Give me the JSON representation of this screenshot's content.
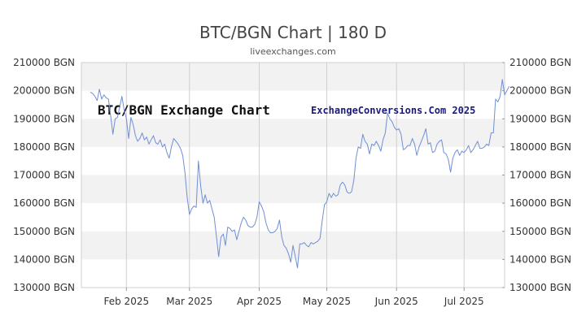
{
  "title": "BTC/BGN Chart | 180 D",
  "subtitle": "liveexchanges.com",
  "watermark_left": "BTC/BGN Exchange Chart",
  "watermark_right": "ExchangeConversions.Com 2025",
  "colors": {
    "line": "#6f8fd6",
    "band": "#f2f2f2",
    "grid": "#cfcfcf",
    "text": "#333333"
  },
  "chart_data": {
    "type": "line",
    "title": "BTC/BGN Chart | 180 D",
    "xlabel": "",
    "ylabel": "",
    "ylim": [
      130000,
      210000
    ],
    "y_ticks": [
      {
        "value": 210000,
        "label": "210000 BGN"
      },
      {
        "value": 200000,
        "label": "200000 BGN"
      },
      {
        "value": 190000,
        "label": "190000 BGN"
      },
      {
        "value": 180000,
        "label": "180000 BGN"
      },
      {
        "value": 170000,
        "label": "170000 BGN"
      },
      {
        "value": 160000,
        "label": "160000 BGN"
      },
      {
        "value": 150000,
        "label": "150000 BGN"
      },
      {
        "value": 140000,
        "label": "140000 BGN"
      },
      {
        "value": 130000,
        "label": "130000 BGN"
      }
    ],
    "x_ticks": [
      {
        "day": 20,
        "label": "Feb 2025"
      },
      {
        "day": 48,
        "label": "Mar 2025"
      },
      {
        "day": 79,
        "label": "Apr 2025"
      },
      {
        "day": 109,
        "label": "May 2025"
      },
      {
        "day": 140,
        "label": "Jun 2025"
      },
      {
        "day": 170,
        "label": "Jul 2025"
      }
    ],
    "x_range": [
      0,
      188
    ],
    "grid": true,
    "series": [
      {
        "values": [
          [
            4,
            199500
          ],
          [
            5,
            199000
          ],
          [
            6,
            198000
          ],
          [
            7,
            196500
          ],
          [
            8,
            200500
          ],
          [
            9,
            197000
          ],
          [
            10,
            198500
          ],
          [
            11,
            197500
          ],
          [
            12,
            197000
          ],
          [
            13,
            191000
          ],
          [
            14,
            184500
          ],
          [
            15,
            190000
          ],
          [
            16,
            190500
          ],
          [
            17,
            194000
          ],
          [
            18,
            198000
          ],
          [
            19,
            193000
          ],
          [
            20,
            190000
          ],
          [
            21,
            183000
          ],
          [
            22,
            190500
          ],
          [
            23,
            188000
          ],
          [
            24,
            184000
          ],
          [
            25,
            182000
          ],
          [
            26,
            183000
          ],
          [
            27,
            185000
          ],
          [
            28,
            182500
          ],
          [
            29,
            183500
          ],
          [
            30,
            181000
          ],
          [
            31,
            182500
          ],
          [
            32,
            184000
          ],
          [
            33,
            181500
          ],
          [
            34,
            181000
          ],
          [
            35,
            182500
          ],
          [
            36,
            180000
          ],
          [
            37,
            181000
          ],
          [
            38,
            178000
          ],
          [
            39,
            176000
          ],
          [
            40,
            180000
          ],
          [
            41,
            183000
          ],
          [
            42,
            182000
          ],
          [
            43,
            181000
          ],
          [
            44,
            179500
          ],
          [
            45,
            177000
          ],
          [
            46,
            171000
          ],
          [
            47,
            162000
          ],
          [
            48,
            156000
          ],
          [
            49,
            158000
          ],
          [
            50,
            159000
          ],
          [
            51,
            158500
          ],
          [
            52,
            175000
          ],
          [
            53,
            166000
          ],
          [
            54,
            160000
          ],
          [
            55,
            163000
          ],
          [
            56,
            160000
          ],
          [
            57,
            161000
          ],
          [
            58,
            158000
          ],
          [
            59,
            155000
          ],
          [
            60,
            148000
          ],
          [
            61,
            141000
          ],
          [
            62,
            148000
          ],
          [
            63,
            149000
          ],
          [
            64,
            145000
          ],
          [
            65,
            151500
          ],
          [
            66,
            151000
          ],
          [
            67,
            150000
          ],
          [
            68,
            150500
          ],
          [
            69,
            147000
          ],
          [
            70,
            150000
          ],
          [
            71,
            153000
          ],
          [
            72,
            155000
          ],
          [
            73,
            154000
          ],
          [
            74,
            152000
          ],
          [
            75,
            151500
          ],
          [
            76,
            151500
          ],
          [
            77,
            152500
          ],
          [
            78,
            155000
          ],
          [
            79,
            160500
          ],
          [
            80,
            159000
          ],
          [
            81,
            157000
          ],
          [
            82,
            153000
          ],
          [
            83,
            150500
          ],
          [
            84,
            149500
          ],
          [
            85,
            149500
          ],
          [
            86,
            150000
          ],
          [
            87,
            151000
          ],
          [
            88,
            154000
          ],
          [
            89,
            148000
          ],
          [
            90,
            145000
          ],
          [
            91,
            144000
          ],
          [
            92,
            142000
          ],
          [
            93,
            139000
          ],
          [
            94,
            145000
          ],
          [
            95,
            141000
          ],
          [
            96,
            137000
          ],
          [
            97,
            145500
          ],
          [
            98,
            145500
          ],
          [
            99,
            146000
          ],
          [
            100,
            145000
          ],
          [
            101,
            144500
          ],
          [
            102,
            146000
          ],
          [
            103,
            145500
          ],
          [
            104,
            146000
          ],
          [
            105,
            146500
          ],
          [
            106,
            147500
          ],
          [
            107,
            154000
          ],
          [
            108,
            159500
          ],
          [
            109,
            160500
          ],
          [
            110,
            163500
          ],
          [
            111,
            162000
          ],
          [
            112,
            163500
          ],
          [
            113,
            162500
          ],
          [
            114,
            163000
          ],
          [
            115,
            166500
          ],
          [
            116,
            167500
          ],
          [
            117,
            166500
          ],
          [
            118,
            164000
          ],
          [
            119,
            163500
          ],
          [
            120,
            164000
          ],
          [
            121,
            168000
          ],
          [
            122,
            176000
          ],
          [
            123,
            180000
          ],
          [
            124,
            179500
          ],
          [
            125,
            184500
          ],
          [
            126,
            182000
          ],
          [
            127,
            181000
          ],
          [
            128,
            177500
          ],
          [
            129,
            181000
          ],
          [
            130,
            180500
          ],
          [
            131,
            182000
          ],
          [
            132,
            180500
          ],
          [
            133,
            178500
          ],
          [
            134,
            182500
          ],
          [
            135,
            185000
          ],
          [
            136,
            192000
          ],
          [
            137,
            190000
          ],
          [
            138,
            189000
          ],
          [
            139,
            187000
          ],
          [
            140,
            186000
          ],
          [
            141,
            186500
          ],
          [
            142,
            184500
          ],
          [
            143,
            179000
          ],
          [
            144,
            179500
          ],
          [
            145,
            180500
          ],
          [
            146,
            180500
          ],
          [
            147,
            183000
          ],
          [
            148,
            181000
          ],
          [
            149,
            177000
          ],
          [
            150,
            180000
          ],
          [
            151,
            182000
          ],
          [
            152,
            184000
          ],
          [
            153,
            186500
          ],
          [
            154,
            181000
          ],
          [
            155,
            181500
          ],
          [
            156,
            178000
          ],
          [
            157,
            178500
          ],
          [
            158,
            181000
          ],
          [
            159,
            182000
          ],
          [
            160,
            182500
          ],
          [
            161,
            178000
          ],
          [
            162,
            177500
          ],
          [
            163,
            175500
          ],
          [
            164,
            171000
          ],
          [
            165,
            176000
          ],
          [
            166,
            178000
          ],
          [
            167,
            179000
          ],
          [
            168,
            177000
          ],
          [
            169,
            178500
          ],
          [
            170,
            178000
          ],
          [
            171,
            179000
          ],
          [
            172,
            180500
          ],
          [
            173,
            178000
          ],
          [
            174,
            179000
          ],
          [
            175,
            180500
          ],
          [
            176,
            182000
          ],
          [
            177,
            179500
          ],
          [
            178,
            179500
          ],
          [
            179,
            180000
          ],
          [
            180,
            181000
          ],
          [
            181,
            180500
          ],
          [
            182,
            185000
          ],
          [
            183,
            185000
          ],
          [
            184,
            197000
          ],
          [
            185,
            196000
          ],
          [
            186,
            198000
          ],
          [
            187,
            204000
          ],
          [
            188,
            198500
          ],
          [
            189,
            200000
          ],
          [
            190,
            201500
          ]
        ]
      }
    ]
  }
}
